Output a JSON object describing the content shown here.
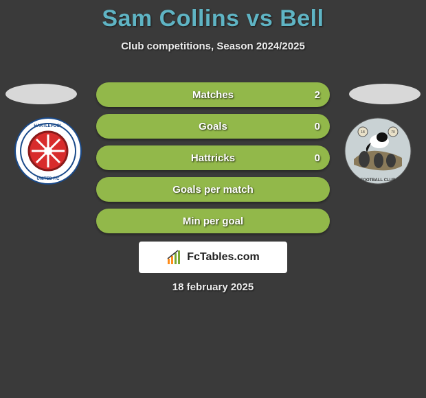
{
  "title": "Sam Collins vs Bell",
  "subtitle": "Club competitions, Season 2024/2025",
  "date": "18 february 2025",
  "logo_text": "FcTables.com",
  "rows": [
    {
      "label": "Matches",
      "value_right": "2",
      "bg": "#92b84a"
    },
    {
      "label": "Goals",
      "value_right": "0",
      "bg": "#92b84a"
    },
    {
      "label": "Hattricks",
      "value_right": "0",
      "bg": "#92b84a"
    },
    {
      "label": "Goals per match",
      "value_right": "",
      "bg": "#92b84a"
    },
    {
      "label": "Min per goal",
      "value_right": "",
      "bg": "#92b84a"
    }
  ],
  "colors": {
    "background": "#3a3a3a",
    "title": "#5fb4c4",
    "ellipse": "#d8d8d8",
    "crest_left_bg": "#ffffff",
    "crest_right_bg": "#c9d2d4"
  }
}
